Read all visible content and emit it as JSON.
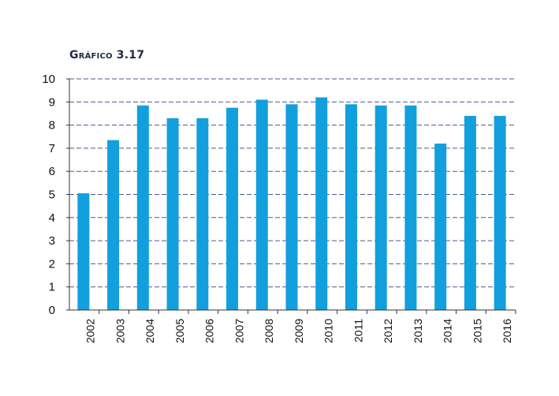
{
  "chart_data": {
    "type": "bar",
    "title": "Gráfico 3.17",
    "categories": [
      "2002",
      "2003",
      "2004",
      "2005",
      "2006",
      "2007",
      "2008",
      "2009",
      "2010",
      "2011",
      "2012",
      "2013",
      "2014",
      "2015",
      "2016"
    ],
    "values": [
      5.05,
      7.35,
      8.85,
      8.3,
      8.3,
      8.75,
      9.1,
      8.9,
      9.2,
      8.9,
      8.85,
      8.85,
      7.2,
      8.4,
      8.4
    ],
    "yticks": [
      "0",
      "1",
      "2",
      "3",
      "4",
      "5",
      "6",
      "7",
      "8",
      "9",
      "10"
    ],
    "ylim": [
      0,
      10
    ],
    "xlabel": "",
    "ylabel": "",
    "grid": "horizontal dashed",
    "colors": {
      "bar": "#129fdd",
      "grid": "#4a5a8a",
      "axis": "#333333"
    }
  }
}
